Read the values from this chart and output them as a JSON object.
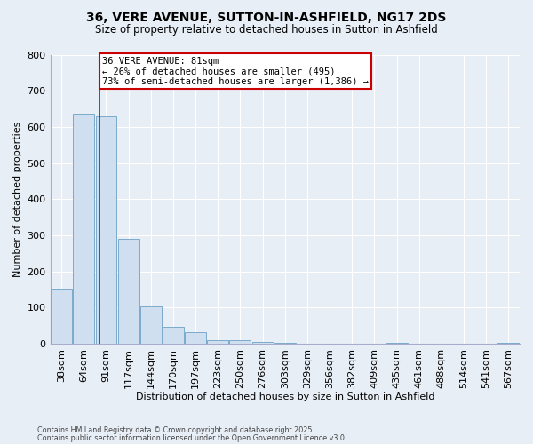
{
  "title_line1": "36, VERE AVENUE, SUTTON-IN-ASHFIELD, NG17 2DS",
  "title_line2": "Size of property relative to detached houses in Sutton in Ashfield",
  "xlabel": "Distribution of detached houses by size in Sutton in Ashfield",
  "ylabel": "Number of detached properties",
  "categories": [
    "38sqm",
    "64sqm",
    "91sqm",
    "117sqm",
    "144sqm",
    "170sqm",
    "197sqm",
    "223sqm",
    "250sqm",
    "276sqm",
    "303sqm",
    "329sqm",
    "356sqm",
    "382sqm",
    "409sqm",
    "435sqm",
    "461sqm",
    "488sqm",
    "514sqm",
    "541sqm",
    "567sqm"
  ],
  "values": [
    150,
    637,
    630,
    290,
    103,
    47,
    32,
    10,
    10,
    5,
    3,
    0,
    0,
    0,
    0,
    3,
    0,
    0,
    0,
    0,
    3
  ],
  "bar_color": "#d0dff0",
  "bar_edge_color": "#7aaacb",
  "vline_x": 1.72,
  "vline_color": "#cc0000",
  "annotation_title": "36 VERE AVENUE: 81sqm",
  "annotation_line2": "← 26% of detached houses are smaller (495)",
  "annotation_line3": "73% of semi-detached houses are larger (1,386) →",
  "annotation_box_edgecolor": "#cc0000",
  "ylim": [
    0,
    800
  ],
  "yticks": [
    0,
    100,
    200,
    300,
    400,
    500,
    600,
    700,
    800
  ],
  "footnote1": "Contains HM Land Registry data © Crown copyright and database right 2025.",
  "footnote2": "Contains public sector information licensed under the Open Government Licence v3.0.",
  "bg_color": "#e8eef5"
}
